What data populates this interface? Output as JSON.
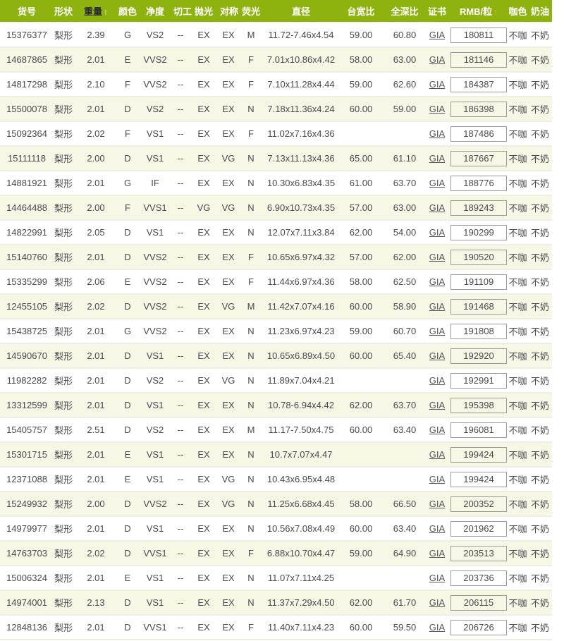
{
  "colors": {
    "header_bg": "#8EB30F",
    "header_text": "#FFFFFF",
    "sorted_header_text": "#2B2B2B",
    "weight_sort_arrow": "#E7EDD2",
    "price_sort_arrow": "#FFB612",
    "alt_row_bg": "#F7F7E6",
    "row_bg": "#FFFFFF",
    "body_text": "#48484E",
    "link_text": "#55555C",
    "row_divider": "#EFEEE2",
    "price_box_border": "#9B9B95"
  },
  "icons": {
    "sort_ascending": "↑"
  },
  "table": {
    "columns": [
      {
        "key": "item_no",
        "label": "货号"
      },
      {
        "key": "shape",
        "label": "形状"
      },
      {
        "key": "weight",
        "label": "重量",
        "sort": "asc",
        "header_style": "dark"
      },
      {
        "key": "color",
        "label": "颜色"
      },
      {
        "key": "clarity",
        "label": "净度"
      },
      {
        "key": "cut",
        "label": "切工"
      },
      {
        "key": "polish",
        "label": "抛光"
      },
      {
        "key": "symmetry",
        "label": "对称"
      },
      {
        "key": "fluorescence",
        "label": "荧光"
      },
      {
        "key": "diameter",
        "label": "直径"
      },
      {
        "key": "table_ratio",
        "label": "台宽比"
      },
      {
        "key": "depth_ratio",
        "label": "全深比"
      },
      {
        "key": "certificate",
        "label": "证书"
      },
      {
        "key": "price",
        "label": "RMB/粒",
        "sort": "asc",
        "header_style": "orange-arrow"
      },
      {
        "key": "brown",
        "label": "咖色"
      },
      {
        "key": "milky",
        "label": "奶油"
      }
    ],
    "rows": [
      [
        "15376377",
        "梨形",
        "2.39",
        "G",
        "VS2",
        "--",
        "EX",
        "EX",
        "M",
        "11.72-7.46x4.54",
        "59.00",
        "60.80",
        "GIA",
        "180811",
        "不咖",
        "不奶"
      ],
      [
        "14687865",
        "梨形",
        "2.01",
        "E",
        "VVS2",
        "--",
        "EX",
        "EX",
        "F",
        "7.01x10.86x4.42",
        "58.00",
        "63.00",
        "GIA",
        "181146",
        "不咖",
        "不奶"
      ],
      [
        "14817298",
        "梨形",
        "2.10",
        "F",
        "VVS2",
        "--",
        "EX",
        "EX",
        "F",
        "7.10x11.28x4.44",
        "59.00",
        "62.60",
        "GIA",
        "184387",
        "不咖",
        "不奶"
      ],
      [
        "15500078",
        "梨形",
        "2.01",
        "D",
        "VS2",
        "--",
        "EX",
        "EX",
        "N",
        "7.18x11.36x4.24",
        "60.00",
        "59.00",
        "GIA",
        "186398",
        "不咖",
        "不奶"
      ],
      [
        "15092364",
        "梨形",
        "2.02",
        "F",
        "VS1",
        "--",
        "EX",
        "EX",
        "F",
        "11.02x7.16x4.36",
        "",
        "",
        "GIA",
        "187486",
        "不咖",
        "不奶"
      ],
      [
        "15111118",
        "梨形",
        "2.00",
        "D",
        "VS1",
        "--",
        "EX",
        "VG",
        "N",
        "7.13x11.13x4.36",
        "65.00",
        "61.10",
        "GIA",
        "187667",
        "不咖",
        "不奶"
      ],
      [
        "14881921",
        "梨形",
        "2.01",
        "G",
        "IF",
        "--",
        "EX",
        "EX",
        "N",
        "10.30x6.83x4.35",
        "61.00",
        "63.70",
        "GIA",
        "188776",
        "不咖",
        "不奶"
      ],
      [
        "14464488",
        "梨形",
        "2.00",
        "F",
        "VVS1",
        "--",
        "VG",
        "VG",
        "N",
        "6.90x10.73x4.35",
        "57.00",
        "63.00",
        "GIA",
        "189243",
        "不咖",
        "不奶"
      ],
      [
        "14822991",
        "梨形",
        "2.05",
        "D",
        "VS1",
        "--",
        "EX",
        "EX",
        "N",
        "12.07x7.11x3.84",
        "62.00",
        "54.00",
        "GIA",
        "190299",
        "不咖",
        "不奶"
      ],
      [
        "15140760",
        "梨形",
        "2.01",
        "D",
        "VVS2",
        "--",
        "EX",
        "EX",
        "F",
        "10.65x6.97x4.32",
        "57.00",
        "62.00",
        "GIA",
        "190520",
        "不咖",
        "不奶"
      ],
      [
        "15335299",
        "梨形",
        "2.06",
        "E",
        "VVS2",
        "--",
        "EX",
        "EX",
        "F",
        "11.44x6.97x4.36",
        "58.00",
        "62.50",
        "GIA",
        "191109",
        "不咖",
        "不奶"
      ],
      [
        "12455105",
        "梨形",
        "2.02",
        "D",
        "VVS2",
        "--",
        "EX",
        "VG",
        "M",
        "11.42x7.07x4.16",
        "60.00",
        "58.90",
        "GIA",
        "191468",
        "不咖",
        "不奶"
      ],
      [
        "15438725",
        "梨形",
        "2.01",
        "G",
        "VVS2",
        "--",
        "EX",
        "EX",
        "N",
        "11.23x6.97x4.23",
        "59.00",
        "60.70",
        "GIA",
        "191808",
        "不咖",
        "不奶"
      ],
      [
        "14590670",
        "梨形",
        "2.01",
        "D",
        "VS1",
        "--",
        "EX",
        "EX",
        "N",
        "10.65x6.89x4.50",
        "60.00",
        "65.40",
        "GIA",
        "192920",
        "不咖",
        "不奶"
      ],
      [
        "11982282",
        "梨形",
        "2.01",
        "D",
        "VS2",
        "--",
        "EX",
        "VG",
        "N",
        "11.89x7.04x4.21",
        "",
        "",
        "GIA",
        "192991",
        "不咖",
        "不奶"
      ],
      [
        "13312599",
        "梨形",
        "2.01",
        "D",
        "VS1",
        "--",
        "EX",
        "EX",
        "N",
        "10.78-6.94x4.42",
        "62.00",
        "63.70",
        "GIA",
        "195398",
        "不咖",
        "不奶"
      ],
      [
        "15405757",
        "梨形",
        "2.51",
        "D",
        "VS2",
        "--",
        "EX",
        "EX",
        "M",
        "11.17-7.50x4.75",
        "60.00",
        "63.40",
        "GIA",
        "196081",
        "不咖",
        "不奶"
      ],
      [
        "15301715",
        "梨形",
        "2.01",
        "E",
        "VS1",
        "--",
        "EX",
        "EX",
        "N",
        "10.7x7.07x4.47",
        "",
        "",
        "GIA",
        "199424",
        "不咖",
        "不奶"
      ],
      [
        "12371088",
        "梨形",
        "2.01",
        "E",
        "VS1",
        "--",
        "EX",
        "VG",
        "N",
        "10.43x6.95x4.48",
        "",
        "",
        "GIA",
        "199424",
        "不咖",
        "不奶"
      ],
      [
        "15249932",
        "梨形",
        "2.00",
        "D",
        "VVS2",
        "--",
        "EX",
        "VG",
        "N",
        "11.25x6.68x4.45",
        "58.00",
        "66.50",
        "GIA",
        "200352",
        "不咖",
        "不奶"
      ],
      [
        "14979977",
        "梨形",
        "2.01",
        "D",
        "VS1",
        "--",
        "EX",
        "EX",
        "N",
        "10.56x7.08x4.49",
        "60.00",
        "63.40",
        "GIA",
        "201962",
        "不咖",
        "不奶"
      ],
      [
        "14763703",
        "梨形",
        "2.02",
        "D",
        "VVS1",
        "--",
        "EX",
        "EX",
        "F",
        "6.88x10.70x4.47",
        "59.00",
        "64.90",
        "GIA",
        "203513",
        "不咖",
        "不奶"
      ],
      [
        "15006324",
        "梨形",
        "2.01",
        "E",
        "VS1",
        "--",
        "EX",
        "EX",
        "N",
        "11.07x7.11x4.25",
        "",
        "",
        "GIA",
        "203736",
        "不咖",
        "不奶"
      ],
      [
        "14974001",
        "梨形",
        "2.13",
        "D",
        "VS1",
        "--",
        "EX",
        "EX",
        "N",
        "11.37x7.29x4.50",
        "62.00",
        "61.70",
        "GIA",
        "206115",
        "不咖",
        "不奶"
      ],
      [
        "12848136",
        "梨形",
        "2.01",
        "D",
        "VVS1",
        "--",
        "EX",
        "EX",
        "F",
        "11.40x7.11x4.23",
        "60.00",
        "59.50",
        "GIA",
        "206726",
        "不咖",
        "不奶"
      ]
    ]
  }
}
